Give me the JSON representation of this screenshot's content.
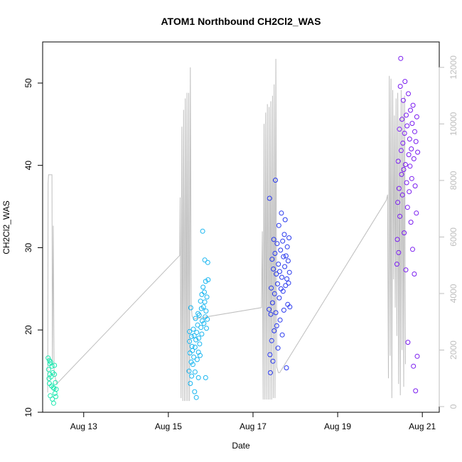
{
  "chart_data": {
    "type": "scatter",
    "title": "ATOM1 Northbound CH2Cl2_WAS",
    "xlabel": "Date",
    "ylabel": "CH2Cl2_WAS",
    "x_unit": "days since Aug 12",
    "xlim": [
      0.03,
      9.4
    ],
    "ylim": [
      10,
      55
    ],
    "y2lim": [
      -200,
      12900
    ],
    "x_ticks": [
      {
        "x": 1,
        "label": "Aug 13"
      },
      {
        "x": 3,
        "label": "Aug 15"
      },
      {
        "x": 5,
        "label": "Aug 17"
      },
      {
        "x": 7,
        "label": "Aug 19"
      },
      {
        "x": 9,
        "label": "Aug 21"
      }
    ],
    "y_ticks": [
      {
        "y": 10,
        "label": "10"
      },
      {
        "y": 20,
        "label": "20"
      },
      {
        "y": 30,
        "label": "30"
      },
      {
        "y": 40,
        "label": "40"
      },
      {
        "y": 50,
        "label": "50"
      }
    ],
    "y2_ticks": [
      {
        "y": 0,
        "label": "0"
      },
      {
        "y": 2000,
        "label": "2000"
      },
      {
        "y": 4000,
        "label": "4000"
      },
      {
        "y": 6000,
        "label": "6000"
      },
      {
        "y": 8000,
        "label": "8000"
      },
      {
        "y": 10000,
        "label": "10000"
      },
      {
        "y": 12000,
        "label": "12000"
      }
    ],
    "grid": false,
    "legend": "none",
    "colors": {
      "flight1": "#1ee8b0",
      "flight2": "#19b6f0",
      "flight3": "#2838ee",
      "flight4": "#7a1cf0",
      "altitude": "#bebebe"
    },
    "series": [
      {
        "values": [
          [
            0.16,
            16.6
          ],
          [
            0.17,
            15.2
          ],
          [
            0.18,
            14.1
          ],
          [
            0.19,
            13.5
          ],
          [
            0.19,
            16.3
          ],
          [
            0.2,
            14.6
          ],
          [
            0.2,
            15.9
          ],
          [
            0.21,
            12.0
          ],
          [
            0.22,
            16.1
          ],
          [
            0.23,
            14.3
          ],
          [
            0.24,
            13.2
          ],
          [
            0.25,
            15.6
          ],
          [
            0.26,
            11.6
          ],
          [
            0.27,
            14.8
          ],
          [
            0.28,
            13.0
          ],
          [
            0.29,
            11.1
          ],
          [
            0.3,
            12.9
          ],
          [
            0.31,
            14.6
          ],
          [
            0.31,
            15.7
          ],
          [
            0.32,
            12.3
          ],
          [
            0.33,
            13.6
          ],
          [
            0.34,
            11.9
          ],
          [
            0.35,
            12.8
          ]
        ]
      },
      {
        "values": [
          [
            3.49,
            15.0
          ],
          [
            3.5,
            18.6
          ],
          [
            3.5,
            19.8
          ],
          [
            3.51,
            17.2
          ],
          [
            3.52,
            13.5
          ],
          [
            3.53,
            22.7
          ],
          [
            3.54,
            16.1
          ],
          [
            3.55,
            19.2
          ],
          [
            3.55,
            14.4
          ],
          [
            3.56,
            18.0
          ],
          [
            3.57,
            17.5
          ],
          [
            3.58,
            15.8
          ],
          [
            3.59,
            20.1
          ],
          [
            3.6,
            16.7
          ],
          [
            3.61,
            19.3
          ],
          [
            3.62,
            12.5
          ],
          [
            3.63,
            17.9
          ],
          [
            3.63,
            14.9
          ],
          [
            3.64,
            21.4
          ],
          [
            3.65,
            18.8
          ],
          [
            3.66,
            11.8
          ],
          [
            3.67,
            19.7
          ],
          [
            3.68,
            16.4
          ],
          [
            3.69,
            20.6
          ],
          [
            3.7,
            22.0
          ],
          [
            3.71,
            17.3
          ],
          [
            3.71,
            14.2
          ],
          [
            3.72,
            19.0
          ],
          [
            3.73,
            21.8
          ],
          [
            3.74,
            18.3
          ],
          [
            3.75,
            16.9
          ],
          [
            3.76,
            23.5
          ],
          [
            3.77,
            20.3
          ],
          [
            3.78,
            22.6
          ],
          [
            3.79,
            19.5
          ],
          [
            3.79,
            24.3
          ],
          [
            3.8,
            21.1
          ],
          [
            3.81,
            32.0
          ],
          [
            3.82,
            25.2
          ],
          [
            3.83,
            22.8
          ],
          [
            3.84,
            20.8
          ],
          [
            3.85,
            24.6
          ],
          [
            3.86,
            28.5
          ],
          [
            3.86,
            23.4
          ],
          [
            3.87,
            21.6
          ],
          [
            3.88,
            25.9
          ],
          [
            3.88,
            14.2
          ],
          [
            3.89,
            22.3
          ],
          [
            3.9,
            20.2
          ],
          [
            3.91,
            24.0
          ],
          [
            3.92,
            21.3
          ],
          [
            3.93,
            28.2
          ],
          [
            3.94,
            26.1
          ]
        ]
      },
      {
        "values": [
          [
            5.38,
            22.5
          ],
          [
            5.39,
            36.0
          ],
          [
            5.4,
            17.0
          ],
          [
            5.41,
            14.8
          ],
          [
            5.42,
            21.9
          ],
          [
            5.43,
            25.1
          ],
          [
            5.44,
            18.7
          ],
          [
            5.45,
            28.6
          ],
          [
            5.46,
            23.3
          ],
          [
            5.47,
            16.2
          ],
          [
            5.48,
            27.4
          ],
          [
            5.49,
            31.0
          ],
          [
            5.5,
            19.9
          ],
          [
            5.51,
            24.4
          ],
          [
            5.52,
            29.3
          ],
          [
            5.53,
            38.2
          ],
          [
            5.54,
            22.1
          ],
          [
            5.55,
            26.8
          ],
          [
            5.56,
            20.5
          ],
          [
            5.57,
            30.5
          ],
          [
            5.58,
            25.6
          ],
          [
            5.59,
            17.8
          ],
          [
            5.6,
            28.0
          ],
          [
            5.61,
            32.7
          ],
          [
            5.62,
            23.9
          ],
          [
            5.63,
            27.1
          ],
          [
            5.64,
            21.2
          ],
          [
            5.65,
            29.7
          ],
          [
            5.66,
            25.0
          ],
          [
            5.67,
            34.2
          ],
          [
            5.68,
            26.4
          ],
          [
            5.69,
            19.4
          ],
          [
            5.7,
            30.8
          ],
          [
            5.71,
            24.7
          ],
          [
            5.72,
            28.9
          ],
          [
            5.73,
            22.4
          ],
          [
            5.74,
            31.6
          ],
          [
            5.75,
            27.7
          ],
          [
            5.76,
            33.4
          ],
          [
            5.77,
            25.4
          ],
          [
            5.78,
            29.0
          ],
          [
            5.79,
            15.4
          ],
          [
            5.8,
            26.2
          ],
          [
            5.81,
            30.1
          ],
          [
            5.82,
            23.1
          ],
          [
            5.83,
            28.4
          ],
          [
            5.84,
            25.7
          ],
          [
            5.85,
            31.2
          ],
          [
            5.86,
            27.0
          ],
          [
            5.87,
            22.8
          ]
        ]
      },
      {
        "values": [
          [
            8.4,
            28.0
          ],
          [
            8.41,
            31.0
          ],
          [
            8.42,
            35.5
          ],
          [
            8.43,
            40.5
          ],
          [
            8.44,
            29.4
          ],
          [
            8.45,
            37.2
          ],
          [
            8.46,
            44.4
          ],
          [
            8.47,
            33.8
          ],
          [
            8.48,
            49.6
          ],
          [
            8.49,
            53.0
          ],
          [
            8.5,
            41.8
          ],
          [
            8.51,
            38.9
          ],
          [
            8.52,
            45.6
          ],
          [
            8.53,
            36.4
          ],
          [
            8.54,
            42.7
          ],
          [
            8.55,
            47.9
          ],
          [
            8.56,
            39.5
          ],
          [
            8.57,
            31.8
          ],
          [
            8.58,
            43.9
          ],
          [
            8.59,
            50.2
          ],
          [
            8.6,
            40.1
          ],
          [
            8.61,
            27.3
          ],
          [
            8.62,
            46.1
          ],
          [
            8.63,
            37.9
          ],
          [
            8.64,
            44.8
          ],
          [
            8.65,
            34.9
          ],
          [
            8.66,
            18.5
          ],
          [
            8.67,
            48.7
          ],
          [
            8.68,
            41.3
          ],
          [
            8.69,
            36.8
          ],
          [
            8.7,
            43.2
          ],
          [
            8.71,
            39.9
          ],
          [
            8.72,
            46.7
          ],
          [
            8.73,
            33.1
          ],
          [
            8.74,
            42.0
          ],
          [
            8.75,
            38.4
          ],
          [
            8.76,
            45.1
          ],
          [
            8.77,
            29.8
          ],
          [
            8.78,
            47.3
          ],
          [
            8.79,
            15.6
          ],
          [
            8.8,
            40.8
          ],
          [
            8.81,
            26.8
          ],
          [
            8.82,
            44.1
          ],
          [
            8.83,
            37.5
          ],
          [
            8.84,
            12.6
          ],
          [
            8.85,
            42.9
          ],
          [
            8.86,
            34.2
          ],
          [
            8.87,
            45.9
          ],
          [
            8.88,
            16.8
          ],
          [
            8.89,
            41.6
          ]
        ]
      }
    ],
    "altitude_series": {
      "values": [
        [
          0.15,
          500
        ],
        [
          0.16,
          7900
        ],
        [
          0.17,
          8200
        ],
        [
          0.18,
          8200
        ],
        [
          0.2,
          8200
        ],
        [
          0.22,
          8200
        ],
        [
          0.24,
          8200
        ],
        [
          0.25,
          8200
        ],
        [
          0.26,
          1500
        ],
        [
          0.28,
          6400
        ],
        [
          0.3,
          1200
        ],
        [
          0.33,
          1000
        ],
        [
          0.36,
          800
        ],
        [
          3.27,
          5350
        ],
        [
          3.28,
          7400
        ],
        [
          3.3,
          300
        ],
        [
          3.32,
          9900
        ],
        [
          3.34,
          200
        ],
        [
          3.36,
          10500
        ],
        [
          3.38,
          200
        ],
        [
          3.4,
          10900
        ],
        [
          3.42,
          200
        ],
        [
          3.44,
          11100
        ],
        [
          3.46,
          200
        ],
        [
          3.48,
          11100
        ],
        [
          3.5,
          200
        ],
        [
          3.52,
          12000
        ],
        [
          3.54,
          3600
        ],
        [
          3.56,
          3200
        ],
        [
          3.6,
          3100
        ],
        [
          5.2,
          3500
        ],
        [
          5.22,
          6200
        ],
        [
          5.24,
          250
        ],
        [
          5.26,
          10000
        ],
        [
          5.28,
          250
        ],
        [
          5.3,
          10400
        ],
        [
          5.32,
          250
        ],
        [
          5.34,
          10700
        ],
        [
          5.36,
          250
        ],
        [
          5.38,
          10600
        ],
        [
          5.4,
          250
        ],
        [
          5.42,
          10800
        ],
        [
          5.44,
          250
        ],
        [
          5.46,
          11000
        ],
        [
          5.48,
          300
        ],
        [
          5.5,
          11400
        ],
        [
          5.52,
          300
        ],
        [
          5.54,
          12300
        ],
        [
          5.56,
          1400
        ],
        [
          5.6,
          1200
        ],
        [
          5.63,
          1200
        ],
        [
          8.15,
          7300
        ],
        [
          8.18,
          7500
        ],
        [
          8.2,
          1000
        ],
        [
          8.22,
          11700
        ],
        [
          8.24,
          1800
        ],
        [
          8.26,
          11600
        ],
        [
          8.28,
          300
        ],
        [
          8.3,
          11200
        ],
        [
          8.32,
          4500
        ],
        [
          8.34,
          10300
        ],
        [
          8.36,
          3500
        ],
        [
          8.38,
          10900
        ],
        [
          8.4,
          2500
        ],
        [
          8.42,
          11100
        ],
        [
          8.44,
          800
        ],
        [
          8.46,
          10200
        ],
        [
          8.48,
          400
        ],
        [
          8.5,
          11200
        ],
        [
          8.52,
          2000
        ],
        [
          8.54,
          10800
        ],
        [
          8.56,
          700
        ],
        [
          8.58,
          11000
        ],
        [
          8.6,
          1500
        ]
      ]
    }
  }
}
